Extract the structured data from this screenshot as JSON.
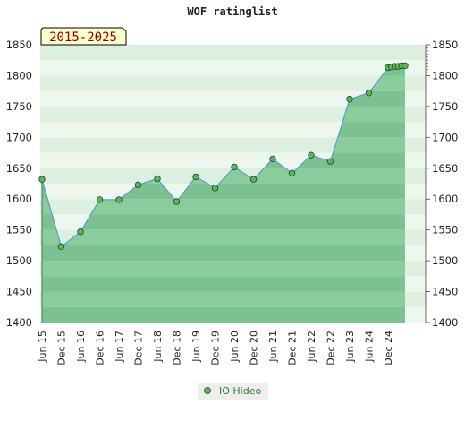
{
  "chart_data": {
    "type": "area",
    "title": "WOF ratinglist",
    "badge": "2015-2025",
    "x": [
      "Jun 15",
      "Dec 15",
      "Jun 16",
      "Dec 16",
      "Jun 17",
      "Dec 17",
      "Jun 18",
      "Dec 18",
      "Jun 19",
      "Dec 19",
      "Jun 20",
      "Dec 20",
      "Jun 21",
      "Dec 21",
      "Jun 22",
      "Dec 22",
      "Jun 23",
      "Jun 24",
      "Dec 24"
    ],
    "ylim": [
      1400,
      1850
    ],
    "yticks": [
      1400,
      1450,
      1500,
      1550,
      1600,
      1650,
      1700,
      1750,
      1800,
      1850
    ],
    "grid": true,
    "legend_position": "bottom-center",
    "series": [
      {
        "name": "IO Hideo",
        "color": "#6ab86a",
        "points": [
          {
            "x": "Jun 15",
            "y": 1632
          },
          {
            "x": "Dec 15",
            "y": 1523
          },
          {
            "x": "Jun 16",
            "y": 1547
          },
          {
            "x": "Dec 16",
            "y": 1599
          },
          {
            "x": "Jun 17",
            "y": 1599
          },
          {
            "x": "Dec 17",
            "y": 1623
          },
          {
            "x": "Jun 18",
            "y": 1633
          },
          {
            "x": "Dec 18",
            "y": 1596
          },
          {
            "x": "Jun 19",
            "y": 1636
          },
          {
            "x": "Dec 19",
            "y": 1618
          },
          {
            "x": "Jun 20",
            "y": 1652
          },
          {
            "x": "Dec 20",
            "y": 1632
          },
          {
            "x": "Jun 21",
            "y": 1665
          },
          {
            "x": "Dec 21",
            "y": 1642
          },
          {
            "x": "Jun 22",
            "y": 1671
          },
          {
            "x": "Dec 22",
            "y": 1661
          },
          {
            "x": "Jun 23",
            "y": 1762
          },
          {
            "x": "Jun 24",
            "y": 1772
          },
          {
            "x": "Dec 24",
            "y": 1813
          },
          {
            "x": "Dec 24",
            "y": 1814
          },
          {
            "x": "Dec 24",
            "y": 1815
          },
          {
            "x": "Dec 24",
            "y": 1815
          },
          {
            "x": "Dec 24",
            "y": 1816
          },
          {
            "x": "Dec 24",
            "y": 1816
          }
        ]
      }
    ]
  }
}
